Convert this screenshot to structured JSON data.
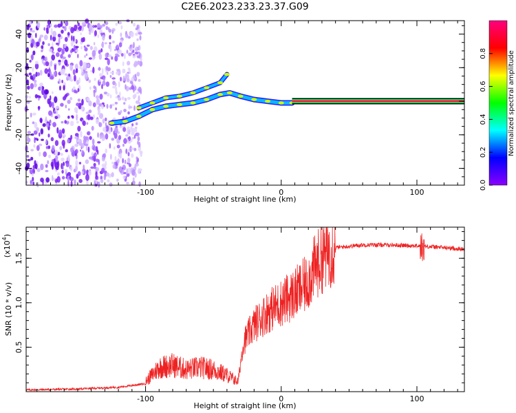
{
  "title": "C2E6.2023.233.23.37.G09",
  "chart_data": [
    {
      "type": "heatmap",
      "xlabel": "Height of straight line (km)",
      "ylabel": "Frequency (Hz)",
      "xlim": [
        -188,
        135
      ],
      "ylim": [
        -50,
        48
      ],
      "x_ticks": [
        -100,
        0,
        100
      ],
      "y_ticks": [
        -40,
        -20,
        0,
        20,
        40
      ],
      "colorbar": {
        "label": "Normalized spectral amplitude",
        "range": [
          0.0,
          1.0
        ],
        "ticks": [
          "0.0",
          "0.2",
          "0.4",
          "0.6",
          "0.8"
        ],
        "colormap": [
          "#8b00ff",
          "#0000ff",
          "#00ffff",
          "#00ff00",
          "#ffff00",
          "#ff0000",
          "#ff007f"
        ]
      },
      "features": {
        "noise_region_x": [
          -188,
          -103
        ],
        "tone_track": [
          {
            "x": -125,
            "y": -13
          },
          {
            "x": -115,
            "y": -12
          },
          {
            "x": -105,
            "y": -9
          },
          {
            "x": -95,
            "y": -5
          },
          {
            "x": -85,
            "y": -3
          },
          {
            "x": -75,
            "y": -2
          },
          {
            "x": -65,
            "y": -1
          },
          {
            "x": -55,
            "y": 1
          },
          {
            "x": -45,
            "y": 4
          },
          {
            "x": -38,
            "y": 5
          },
          {
            "x": -30,
            "y": 3
          },
          {
            "x": -20,
            "y": 1
          },
          {
            "x": -10,
            "y": 0
          },
          {
            "x": 0,
            "y": -1
          },
          {
            "x": 8,
            "y": -1
          }
        ],
        "upper_branch": [
          {
            "x": -105,
            "y": -4
          },
          {
            "x": -95,
            "y": -1
          },
          {
            "x": -85,
            "y": 2
          },
          {
            "x": -75,
            "y": 3
          },
          {
            "x": -65,
            "y": 5
          },
          {
            "x": -55,
            "y": 8
          },
          {
            "x": -45,
            "y": 11
          },
          {
            "x": -40,
            "y": 16
          }
        ],
        "carrier": {
          "x": [
            8,
            135
          ],
          "y": 0
        }
      }
    },
    {
      "type": "line",
      "xlabel": "Height of straight line (km)",
      "ylabel": "SNR (10 * v/v)",
      "y_multiplier_label": "(x10",
      "y_multiplier_exp": "4",
      "y_multiplier_close": ")",
      "xlim": [
        -188,
        135
      ],
      "ylim": [
        0,
        18500
      ],
      "x_ticks": [
        -100,
        0,
        100
      ],
      "y_ticks": [
        5000,
        10000,
        15000
      ],
      "y_tick_labels": [
        "0.5",
        "1.0",
        "1.5"
      ],
      "series": [
        {
          "color": "#ee2222",
          "envelope": [
            {
              "x": -188,
              "y": 200
            },
            {
              "x": -150,
              "y": 300
            },
            {
              "x": -120,
              "y": 500
            },
            {
              "x": -100,
              "y": 900
            },
            {
              "x": -90,
              "y": 2200
            },
            {
              "x": -80,
              "y": 2400
            },
            {
              "x": -70,
              "y": 2000
            },
            {
              "x": -60,
              "y": 2200
            },
            {
              "x": -50,
              "y": 2000
            },
            {
              "x": -40,
              "y": 1500
            },
            {
              "x": -32,
              "y": 900
            },
            {
              "x": -28,
              "y": 5500
            },
            {
              "x": -20,
              "y": 7500
            },
            {
              "x": -10,
              "y": 9000
            },
            {
              "x": 0,
              "y": 10000
            },
            {
              "x": 10,
              "y": 11000
            },
            {
              "x": 18,
              "y": 12000
            },
            {
              "x": 25,
              "y": 14000
            },
            {
              "x": 32,
              "y": 15500
            },
            {
              "x": 40,
              "y": 16200
            },
            {
              "x": 60,
              "y": 16500
            },
            {
              "x": 80,
              "y": 16500
            },
            {
              "x": 100,
              "y": 16400
            },
            {
              "x": 120,
              "y": 16200
            },
            {
              "x": 135,
              "y": 16000
            }
          ]
        }
      ]
    }
  ]
}
